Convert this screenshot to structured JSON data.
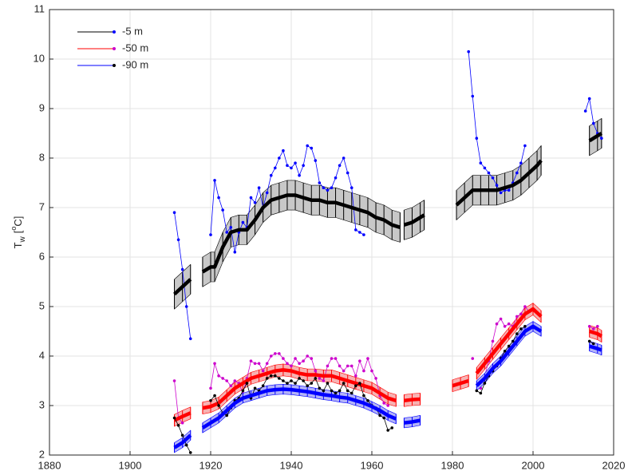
{
  "chart_data": {
    "type": "line",
    "ylabel_symbol": "T",
    "ylabel_subscript": "w",
    "ylabel_superscript": "o",
    "ylabel_unit": "C]",
    "ylabel_open": "[",
    "xlim": [
      1880,
      2020
    ],
    "xticks": [
      1880,
      1900,
      1920,
      1940,
      1960,
      1980,
      2000,
      2020
    ],
    "ylim": [
      2,
      11
    ],
    "yticks": [
      2,
      3,
      4,
      5,
      6,
      7,
      8,
      9,
      10,
      11
    ],
    "grid": true,
    "legend": "upper left",
    "series": [
      {
        "name": "-5 m",
        "color": "#000000",
        "marker_color": "#0000ff",
        "band_color": "#c8c8c8",
        "uncertainty": 0.3,
        "trend": {
          "x": [
            1911,
            1913,
            1915,
            1916.5,
            1918,
            1920,
            1921,
            1923,
            1925,
            1927,
            1929,
            1931,
            1933,
            1935,
            1937,
            1939,
            1941,
            1943,
            1945,
            1947,
            1949,
            1951,
            1953,
            1955,
            1957,
            1959,
            1961,
            1963,
            1965,
            1967,
            1967.5,
            1968,
            1970,
            1972,
            1973,
            1977,
            1981,
            1983,
            1985,
            1987,
            1989,
            1991,
            1993,
            1995,
            1997,
            1999,
            2001,
            2002,
            2008,
            2014,
            2016,
            2017
          ],
          "values": [
            5.25,
            5.4,
            5.55,
            null,
            5.7,
            5.8,
            5.8,
            6.2,
            6.5,
            6.55,
            6.55,
            6.75,
            7.0,
            7.15,
            7.2,
            7.25,
            7.25,
            7.2,
            7.15,
            7.15,
            7.1,
            7.1,
            7.05,
            7.0,
            6.95,
            6.9,
            6.8,
            6.75,
            6.65,
            6.6,
            null,
            6.65,
            6.7,
            6.8,
            6.85,
            null,
            7.05,
            7.2,
            7.35,
            7.35,
            7.35,
            7.35,
            7.4,
            7.45,
            7.55,
            7.7,
            7.85,
            7.95,
            null,
            8.35,
            8.45,
            8.5
          ]
        },
        "observations": {
          "x": [
            1911,
            1912,
            1913,
            1914,
            1915,
            1917,
            1920,
            1921,
            1922,
            1923,
            1924,
            1925,
            1926,
            1927,
            1928,
            1929,
            1930,
            1931,
            1932,
            1933,
            1934,
            1935,
            1936,
            1937,
            1938,
            1939,
            1940,
            1941,
            1942,
            1943,
            1944,
            1945,
            1946,
            1947,
            1948,
            1949,
            1950,
            1951,
            1952,
            1953,
            1954,
            1955,
            1956,
            1957,
            1958,
            1975,
            1984,
            1985,
            1986,
            1987,
            1988,
            1989,
            1990,
            1991,
            1992,
            1993,
            1994,
            1995,
            1996,
            1997,
            1998,
            2005,
            2013,
            2014,
            2015,
            2016,
            2017
          ],
          "values": [
            6.9,
            6.35,
            5.75,
            5.0,
            4.35,
            null,
            6.45,
            7.55,
            7.2,
            6.95,
            6.5,
            6.6,
            6.1,
            6.5,
            6.7,
            6.6,
            7.2,
            7.1,
            7.4,
            7.0,
            7.3,
            7.65,
            7.8,
            8.0,
            8.15,
            7.85,
            7.8,
            7.9,
            7.65,
            7.85,
            8.25,
            8.2,
            7.95,
            7.5,
            7.4,
            7.35,
            7.4,
            7.6,
            7.85,
            8.0,
            7.7,
            7.4,
            6.55,
            6.5,
            6.45,
            null,
            10.15,
            9.25,
            8.4,
            7.9,
            7.8,
            7.7,
            7.6,
            7.45,
            7.3,
            7.35,
            7.35,
            7.5,
            7.7,
            7.9,
            8.25,
            null,
            8.95,
            9.2,
            8.7,
            8.5,
            8.4
          ]
        }
      },
      {
        "name": "-50 m",
        "color": "#ff0000",
        "marker_color": "#cc00cc",
        "band_color": "#f7b2b2",
        "uncertainty": 0.12,
        "trend": {
          "x": [
            1911,
            1913,
            1915,
            1916.5,
            1918,
            1920,
            1922,
            1924,
            1926,
            1928,
            1930,
            1932,
            1934,
            1936,
            1938,
            1940,
            1942,
            1944,
            1946,
            1948,
            1950,
            1952,
            1954,
            1956,
            1958,
            1960,
            1962,
            1964,
            1966,
            1967,
            1968,
            1970,
            1972,
            1976,
            1980,
            1982,
            1984,
            1985,
            1986,
            1988,
            1990,
            1992,
            1994,
            1996,
            1998,
            2000,
            2002,
            2008,
            2014,
            2016,
            2017
          ],
          "values": [
            2.7,
            2.78,
            2.85,
            null,
            2.95,
            2.98,
            3.05,
            3.2,
            3.35,
            3.45,
            3.55,
            3.6,
            3.65,
            3.7,
            3.72,
            3.7,
            3.65,
            3.62,
            3.62,
            3.6,
            3.6,
            3.55,
            3.5,
            3.45,
            3.4,
            3.35,
            3.25,
            3.15,
            3.1,
            null,
            3.1,
            3.12,
            3.13,
            null,
            3.4,
            3.45,
            3.5,
            null,
            3.65,
            3.85,
            4.05,
            4.25,
            4.45,
            4.65,
            4.85,
            4.95,
            4.8,
            null,
            4.5,
            4.45,
            4.4
          ]
        },
        "observations": {
          "x": [
            1911,
            1912,
            1913,
            1916,
            1920,
            1921,
            1922,
            1923,
            1924,
            1925,
            1926,
            1927,
            1928,
            1929,
            1930,
            1931,
            1932,
            1933,
            1934,
            1935,
            1936,
            1937,
            1938,
            1939,
            1940,
            1941,
            1942,
            1943,
            1944,
            1945,
            1946,
            1947,
            1948,
            1949,
            1950,
            1951,
            1952,
            1953,
            1954,
            1955,
            1956,
            1957,
            1958,
            1959,
            1960,
            1961,
            1962,
            1963,
            1964,
            1975,
            1985,
            1986,
            1987,
            1988,
            1989,
            1990,
            1991,
            1992,
            1993,
            1994,
            1995,
            1996,
            1997,
            1998,
            1999,
            2006,
            2014,
            2015,
            2016
          ],
          "values": [
            3.5,
            2.75,
            2.65,
            null,
            3.35,
            3.85,
            3.6,
            3.55,
            3.5,
            3.4,
            3.5,
            3.45,
            3.25,
            3.55,
            3.9,
            3.85,
            3.85,
            3.7,
            3.85,
            4.0,
            4.05,
            4.05,
            3.95,
            3.85,
            3.8,
            3.95,
            3.85,
            3.9,
            4.0,
            3.95,
            3.7,
            3.55,
            3.5,
            3.8,
            3.95,
            3.95,
            3.8,
            3.7,
            3.8,
            3.8,
            3.6,
            3.9,
            3.7,
            3.95,
            3.7,
            3.55,
            3.2,
            3.05,
            3.0,
            null,
            3.95,
            null,
            3.35,
            3.6,
            3.9,
            4.3,
            4.65,
            4.75,
            4.6,
            4.65,
            4.6,
            4.8,
            4.85,
            5.0,
            4.9,
            null,
            4.6,
            4.55,
            4.6
          ]
        }
      },
      {
        "name": "-90 m",
        "color": "#0000ff",
        "marker_color": "#000000",
        "band_color": "#b3b3f7",
        "uncertainty": 0.1,
        "trend": {
          "x": [
            1911,
            1913,
            1915,
            1916.5,
            1918,
            1920,
            1922,
            1924,
            1926,
            1928,
            1930,
            1932,
            1934,
            1936,
            1938,
            1940,
            1942,
            1944,
            1946,
            1948,
            1950,
            1952,
            1954,
            1956,
            1958,
            1960,
            1962,
            1964,
            1966,
            1967,
            1968,
            1970,
            1972,
            1980,
            1986,
            1988,
            1990,
            1992,
            1994,
            1996,
            1998,
            2000,
            2002,
            2008,
            2014,
            2016,
            2017
          ],
          "values": [
            2.15,
            2.25,
            2.4,
            null,
            2.55,
            2.65,
            2.75,
            2.9,
            3.05,
            3.15,
            3.2,
            3.25,
            3.3,
            3.32,
            3.33,
            3.32,
            3.3,
            3.28,
            3.25,
            3.22,
            3.2,
            3.17,
            3.15,
            3.1,
            3.05,
            2.98,
            2.9,
            2.8,
            2.73,
            null,
            2.65,
            2.67,
            2.7,
            null,
            3.4,
            3.55,
            3.75,
            3.9,
            4.1,
            4.3,
            4.5,
            4.6,
            4.5,
            null,
            4.2,
            4.15,
            4.12
          ]
        },
        "observations": {
          "x": [
            1911,
            1912,
            1913,
            1914,
            1915,
            1917,
            1920,
            1921,
            1922,
            1923,
            1924,
            1925,
            1926,
            1927,
            1928,
            1929,
            1930,
            1931,
            1932,
            1933,
            1934,
            1935,
            1936,
            1937,
            1938,
            1939,
            1940,
            1941,
            1942,
            1943,
            1944,
            1945,
            1946,
            1947,
            1948,
            1949,
            1950,
            1951,
            1952,
            1953,
            1954,
            1955,
            1956,
            1957,
            1958,
            1959,
            1960,
            1961,
            1962,
            1963,
            1964,
            1965,
            1975,
            1986,
            1987,
            1988,
            1989,
            1990,
            1991,
            1992,
            1993,
            1994,
            1995,
            1996,
            1997,
            1998,
            2006,
            2014,
            2015
          ],
          "values": [
            2.75,
            2.6,
            2.4,
            2.2,
            2.05,
            null,
            3.1,
            3.2,
            3.0,
            2.85,
            2.8,
            2.95,
            3.1,
            3.15,
            3.3,
            3.45,
            3.15,
            3.35,
            3.3,
            3.4,
            3.55,
            3.6,
            3.6,
            3.55,
            3.5,
            3.45,
            3.5,
            3.45,
            3.55,
            3.5,
            3.4,
            3.45,
            3.55,
            3.35,
            3.3,
            3.45,
            3.3,
            3.25,
            3.3,
            3.45,
            3.3,
            3.25,
            3.4,
            3.45,
            3.2,
            3.1,
            3.0,
            2.95,
            2.8,
            2.75,
            2.5,
            2.55,
            null,
            3.3,
            3.25,
            3.45,
            3.6,
            3.7,
            3.8,
            3.95,
            4.1,
            4.2,
            4.3,
            4.45,
            4.55,
            4.6,
            null,
            4.3,
            4.25
          ]
        }
      }
    ]
  }
}
